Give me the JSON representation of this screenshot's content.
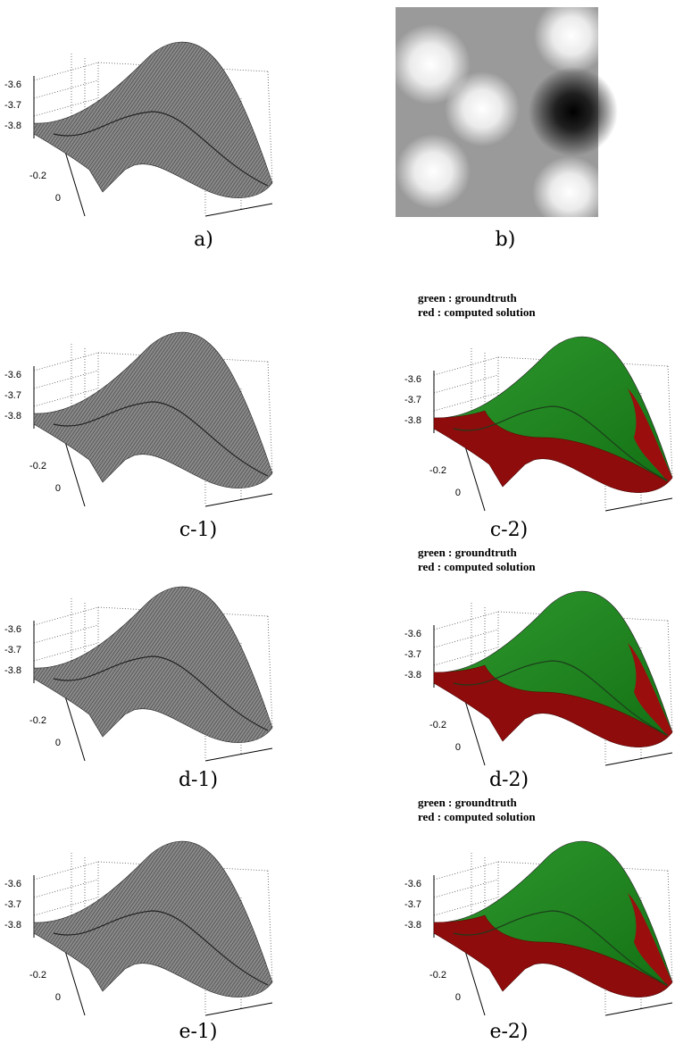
{
  "panels": [
    {
      "label": "a)",
      "ticks": [
        "-3.6",
        "-3.7",
        "-3.8",
        "-0.2",
        "0"
      ]
    },
    {
      "label": "b)"
    },
    {
      "label": "c-1)",
      "ticks": [
        "-3.6",
        "-3.7",
        "-3.8",
        "-0.2",
        "0"
      ]
    },
    {
      "label": "c-2)",
      "legend": [
        "green : groundtruth",
        "red : computed  solution"
      ],
      "ticks": [
        "-3.6",
        "-3.7",
        "-3.8",
        "-0.2",
        "0"
      ]
    },
    {
      "label": "d-1)",
      "ticks": [
        "-3.6",
        "-3.7",
        "-3.8",
        "-0.2",
        "0"
      ]
    },
    {
      "label": "d-2)",
      "legend": [
        "green : groundtruth",
        "red : computed  solution"
      ],
      "ticks": [
        "-3.6",
        "-3.7",
        "-3.8",
        "-0.2",
        "0"
      ]
    },
    {
      "label": "e-1)",
      "ticks": [
        "-3.6",
        "-3.7",
        "-3.8",
        "-0.2",
        "0"
      ]
    },
    {
      "label": "e-2)",
      "legend": [
        "green : groundtruth",
        "red : computed  solution"
      ],
      "ticks": [
        "-3.6",
        "-3.7",
        "-3.8",
        "-0.2",
        "0"
      ]
    }
  ]
}
